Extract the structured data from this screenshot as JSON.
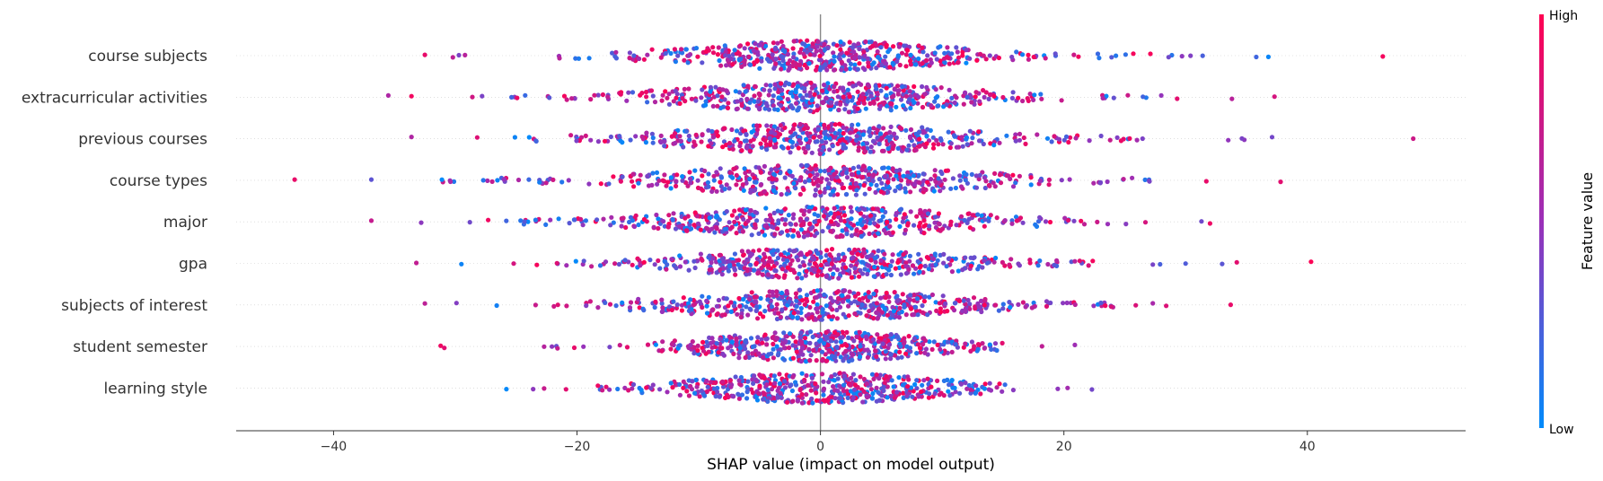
{
  "chart_data": {
    "type": "scatter",
    "subtype": "shap-beeswarm",
    "xlabel": "SHAP value (impact on model output)",
    "xlim": [
      -48,
      53
    ],
    "xticks": [
      -40,
      -20,
      0,
      20,
      40
    ],
    "xtick_labels": [
      "−40",
      "−20",
      "0",
      "20",
      "40"
    ],
    "colorbar": {
      "label": "Feature value",
      "high_label": "High",
      "low_label": "Low",
      "low_color": "#008bfb",
      "mid_color": "#9b30b8",
      "high_color": "#ff0052"
    },
    "features": [
      {
        "name": "course subjects",
        "min": -32.5,
        "max": 46.2,
        "outliers": [
          -32.5,
          -30.2,
          -29.7,
          -29.2,
          25.7,
          28.6,
          29.7,
          30.4,
          31.4,
          35.8,
          36.8,
          46.2
        ],
        "q_low": -8,
        "q_high": 9
      },
      {
        "name": "extracurricular activities",
        "min": -35.5,
        "max": 37.3,
        "outliers": [
          -35.5,
          -33.6,
          -28.6,
          -27.8,
          23.2,
          24.1,
          28.0,
          29.3,
          33.8,
          37.3
        ],
        "q_low": -9,
        "q_high": 9
      },
      {
        "name": "previous courses",
        "min": -33.6,
        "max": 48.7,
        "outliers": [
          -33.6,
          -28.2,
          -25.1,
          23.8,
          24.9,
          25.4,
          37.1,
          48.7
        ],
        "q_low": -9,
        "q_high": 10
      },
      {
        "name": "course types",
        "min": -43.2,
        "max": 37.8,
        "outliers": [
          -43.2,
          -36.9,
          -30.4,
          -27.7,
          -26.0,
          -24.8,
          24.9,
          25.6,
          31.7,
          37.8
        ],
        "q_low": -10,
        "q_high": 10
      },
      {
        "name": "major",
        "min": -36.9,
        "max": 32.0,
        "outliers": [
          -36.9,
          -32.8,
          -28.8,
          -27.3,
          -23.4,
          21.4,
          23.6,
          25.1,
          26.7,
          31.3,
          32.0
        ],
        "q_low": -9,
        "q_high": 10
      },
      {
        "name": "gpa",
        "min": -33.2,
        "max": 40.3,
        "outliers": [
          -33.2,
          -29.5,
          -25.2,
          -23.3,
          19.4,
          20.9,
          21.3,
          27.3,
          27.9,
          30.0,
          33.0,
          34.2,
          40.3
        ],
        "q_low": -8,
        "q_high": 9
      },
      {
        "name": "subjects of interest",
        "min": -32.5,
        "max": 33.7,
        "outliers": [
          -32.5,
          -29.9,
          -26.6,
          -23.4,
          -21.9,
          23.4,
          25.9,
          27.3,
          28.4,
          33.7
        ],
        "q_low": -9,
        "q_high": 9
      },
      {
        "name": "student semester",
        "min": -31.2,
        "max": 20.9,
        "outliers": [
          -31.2,
          -30.9,
          -22.7,
          -21.6,
          18.2,
          20.9
        ],
        "q_low": -7,
        "q_high": 8
      },
      {
        "name": "learning style",
        "min": -25.8,
        "max": 22.3,
        "outliers": [
          -25.8,
          -23.6,
          -22.7,
          -20.9,
          19.5,
          20.3,
          22.3
        ],
        "q_low": -8,
        "q_high": 8
      }
    ]
  }
}
